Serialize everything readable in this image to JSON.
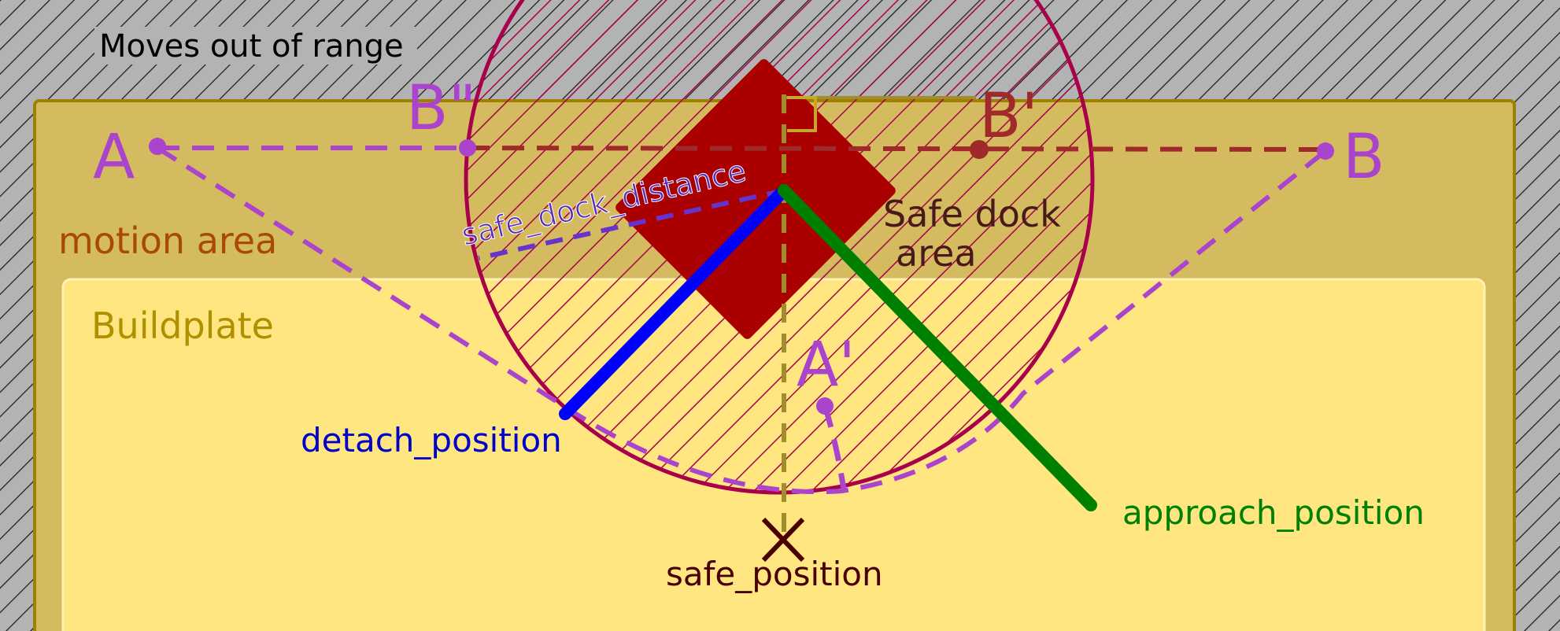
{
  "labels": {
    "out_of_range": "Moves out of range",
    "motion_area": "motion area",
    "buildplate": "Buildplate",
    "safe_dock_area_line1": "Safe dock",
    "safe_dock_area_line2": "area",
    "safe_dock_distance": "safe_dock_distance",
    "detach_position": "detach_position",
    "approach_position": "approach_position",
    "safe_position": "safe_position"
  },
  "points": {
    "A": "A",
    "B": "B",
    "B_prime": "B'",
    "B_double_prime": "B\"",
    "A_prime": "A'"
  },
  "colors": {
    "background": "#b3b3b3",
    "motion_area": "#d4bb5f",
    "buildplate": "#ffe680",
    "dock": "#aa0000",
    "safe_circle": "#a8004a",
    "path": "#aa44cc",
    "detach": "#0000ff",
    "approach": "#008000",
    "motion_label": "#a84b00",
    "buildplate_label": "#b09000"
  }
}
